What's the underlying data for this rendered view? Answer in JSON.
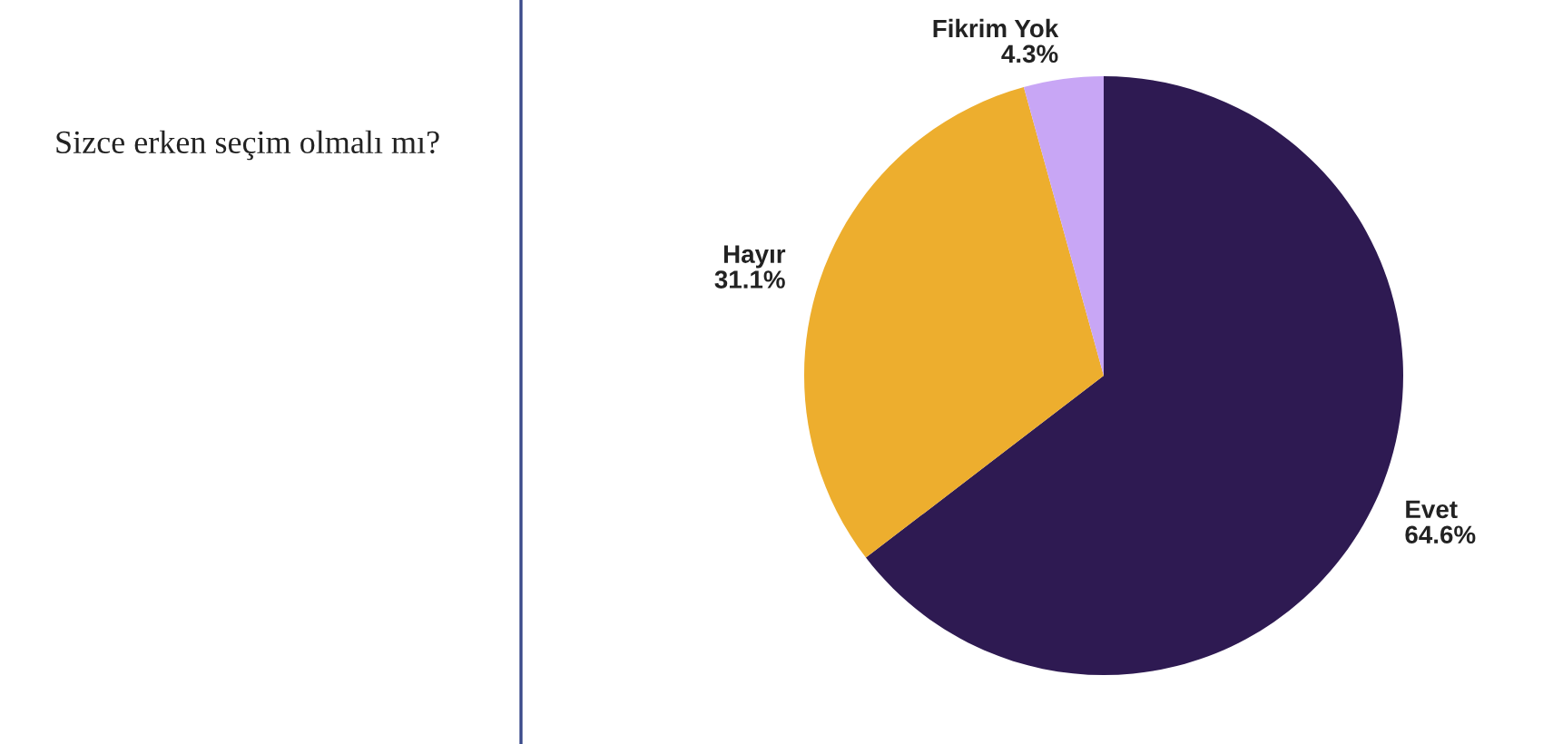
{
  "chart_data": {
    "type": "pie",
    "title": "Sizce erken seçim olmalı mı?",
    "categories": [
      "Evet",
      "Hayır",
      "Fikrim Yok"
    ],
    "values": [
      64.6,
      31.1,
      4.3
    ],
    "value_labels": [
      "64.6%",
      "31.1%",
      "4.3%"
    ],
    "colors": [
      "#2e1a52",
      "#edae2e",
      "#c8a6f5"
    ],
    "legend": false
  }
}
